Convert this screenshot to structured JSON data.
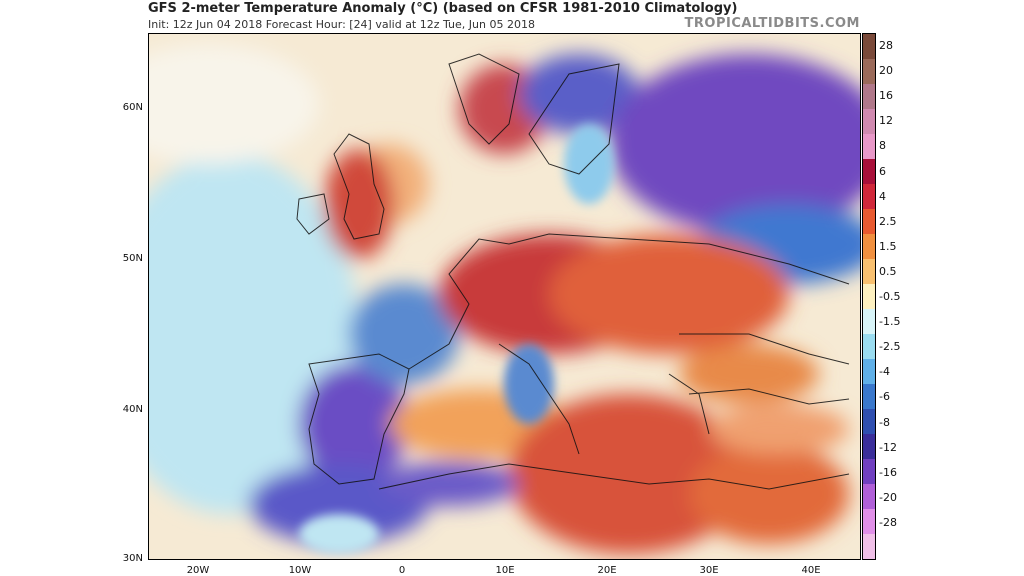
{
  "header": {
    "title": "GFS 2-meter Temperature Anomaly (°C) (based on CFSR 1981-2010 Climatology)",
    "subtitle": "Init: 12z Jun 04 2018   Forecast Hour: [24]   valid at 12z Tue, Jun 05 2018",
    "credit": "TROPICALTIDBITS.COM"
  },
  "axes": {
    "lat_labels": [
      "60N",
      "50N",
      "40N",
      "30N"
    ],
    "lon_labels": [
      "20W",
      "10W",
      "0",
      "10E",
      "20E",
      "30E",
      "40E"
    ]
  },
  "colorbar": {
    "labels": [
      "28",
      "20",
      "16",
      "12",
      "8",
      "6",
      "4",
      "2.5",
      "1.5",
      "0.5",
      "-0.5",
      "-1.5",
      "-2.5",
      "-4",
      "-6",
      "-8",
      "-12",
      "-16",
      "-20",
      "-28"
    ],
    "colors": [
      "#7a4a3a",
      "#9a6a5a",
      "#b0788a",
      "#d08ab0",
      "#e898c8",
      "#a8103a",
      "#d0283a",
      "#e85a30",
      "#f09040",
      "#f8c070",
      "#fdf0c0",
      "#d8f4f8",
      "#9adcf0",
      "#60b0e8",
      "#3a78cc",
      "#2f4fb0",
      "#3a2e9a",
      "#7040c0",
      "#b060d8",
      "#e090e8",
      "#f0c0e8"
    ]
  },
  "map": {
    "region": "Europe and North Africa",
    "colors": {
      "ocean_cool": "#bfe6f2",
      "ocean_mild": "#f8e6c4",
      "warm": "#e06a3a",
      "hot": "#c8303a",
      "very_cold": "#7a52c8",
      "cold": "#3f6fcc",
      "cool": "#8ecbec"
    }
  }
}
